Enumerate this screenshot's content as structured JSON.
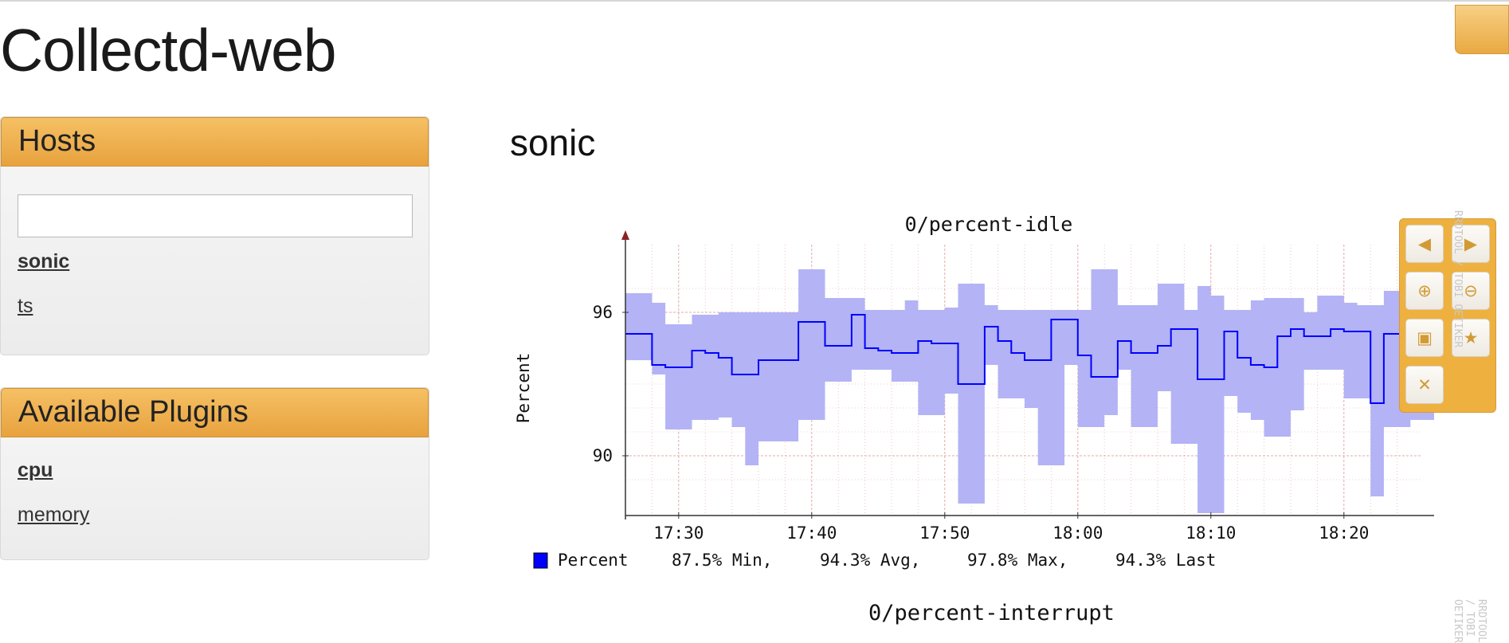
{
  "app": {
    "title": "Collectd-web"
  },
  "hosts_panel": {
    "title": "Hosts",
    "search_value": "",
    "items": [
      {
        "label": "sonic",
        "active": true
      },
      {
        "label": "ts",
        "active": false
      }
    ]
  },
  "plugins_panel": {
    "title": "Available Plugins",
    "items": [
      {
        "label": "cpu",
        "active": true
      },
      {
        "label": "memory",
        "active": false
      }
    ]
  },
  "main": {
    "host_heading": "sonic"
  },
  "graph_controls": {
    "buttons": [
      {
        "name": "pan-left-icon",
        "glyph": "◀"
      },
      {
        "name": "pan-right-icon",
        "glyph": "▶"
      },
      {
        "name": "zoom-in-icon",
        "glyph": "⊕"
      },
      {
        "name": "zoom-out-icon",
        "glyph": "⊖"
      },
      {
        "name": "save-icon",
        "glyph": "▣"
      },
      {
        "name": "star-icon",
        "glyph": "★"
      },
      {
        "name": "close-icon",
        "glyph": "✕"
      }
    ],
    "accent": "#eeb13f"
  },
  "watermark": "RRDTOOL / TOBI OETIKER",
  "second_graph_title": "0/percent-interrupt",
  "chart_data": {
    "type": "area",
    "title": "0/percent-idle",
    "ylabel": "Percent",
    "xlabel": "",
    "ylim": [
      87.5,
      98.5
    ],
    "yticks": [
      90,
      96
    ],
    "x_start_minute": "17:26",
    "xticks": [
      "17:30",
      "17:40",
      "17:50",
      "18:00",
      "18:10",
      "18:20"
    ],
    "grid": true,
    "colors": {
      "line": "#0000ff",
      "band": "#b3b3f5",
      "grid": "#e3a0a0"
    },
    "series": [
      {
        "name": "Percent",
        "step_minutes": 1,
        "avg": [
          95.1,
          95.1,
          93.8,
          93.7,
          93.7,
          94.4,
          94.3,
          94.1,
          93.4,
          93.4,
          94.0,
          94.0,
          94.0,
          95.6,
          95.6,
          94.6,
          94.6,
          95.9,
          94.5,
          94.4,
          94.3,
          94.3,
          94.8,
          94.7,
          94.7,
          93.0,
          93.0,
          95.4,
          94.8,
          94.3,
          94.0,
          94.0,
          95.7,
          95.7,
          94.2,
          93.3,
          93.3,
          94.8,
          94.3,
          94.3,
          94.6,
          95.3,
          95.3,
          93.2,
          93.2,
          95.2,
          94.1,
          93.8,
          93.7,
          95.0,
          95.3,
          95.0,
          95.0,
          95.3,
          95.2,
          95.2,
          92.2,
          95.1,
          95.1,
          94.6,
          95.7,
          95.7,
          93.8,
          94.5,
          94.2,
          94.0,
          94.0,
          95.6,
          95.6,
          94.6,
          95.6,
          95.5,
          95.5,
          94.4
        ],
        "max": [
          96.8,
          96.8,
          96.4,
          95.5,
          95.5,
          95.9,
          95.9,
          96.0,
          96.0,
          96.0,
          96.0,
          96.0,
          96.0,
          97.8,
          97.8,
          96.6,
          96.6,
          96.6,
          96.1,
          96.1,
          96.1,
          96.5,
          96.1,
          96.1,
          96.2,
          97.2,
          97.2,
          96.3,
          96.1,
          96.1,
          96.1,
          96.1,
          96.1,
          96.1,
          96.1,
          97.8,
          97.8,
          96.3,
          96.3,
          96.3,
          97.2,
          97.2,
          96.1,
          97.1,
          96.7,
          96.1,
          96.1,
          96.5,
          96.6,
          96.6,
          96.6,
          96.0,
          96.7,
          96.7,
          96.4,
          96.3,
          96.3,
          96.9,
          96.9,
          96.3,
          96.7,
          96.4,
          96.2,
          96.1,
          96.1,
          96.1,
          96.3,
          96.3,
          96.8,
          97.4,
          97.4,
          97.4,
          96.8,
          96.3
        ],
        "min": [
          94.0,
          94.0,
          93.4,
          91.1,
          91.1,
          91.5,
          91.5,
          91.6,
          91.2,
          89.6,
          90.6,
          90.6,
          90.6,
          91.5,
          91.5,
          93.1,
          93.1,
          93.6,
          93.6,
          93.6,
          93.1,
          93.1,
          91.7,
          91.7,
          92.6,
          88.0,
          88.0,
          93.8,
          92.4,
          92.4,
          92.0,
          89.6,
          89.6,
          93.8,
          91.2,
          91.2,
          91.7,
          93.6,
          91.2,
          91.2,
          92.7,
          90.5,
          90.5,
          87.6,
          87.6,
          92.5,
          91.8,
          91.5,
          90.8,
          90.8,
          91.9,
          93.6,
          93.6,
          93.6,
          92.4,
          92.4,
          88.3,
          91.2,
          91.2,
          91.5,
          91.5,
          91.1,
          92.3,
          91.2,
          91.0,
          91.0,
          91.0,
          90.5,
          90.5,
          90.0,
          92.5,
          92.5,
          92.5,
          92.0
        ],
        "stats": {
          "min": "87.5% Min,",
          "avg": "94.3% Avg,",
          "max": "97.8% Max,",
          "last": "94.3% Last"
        }
      }
    ]
  }
}
